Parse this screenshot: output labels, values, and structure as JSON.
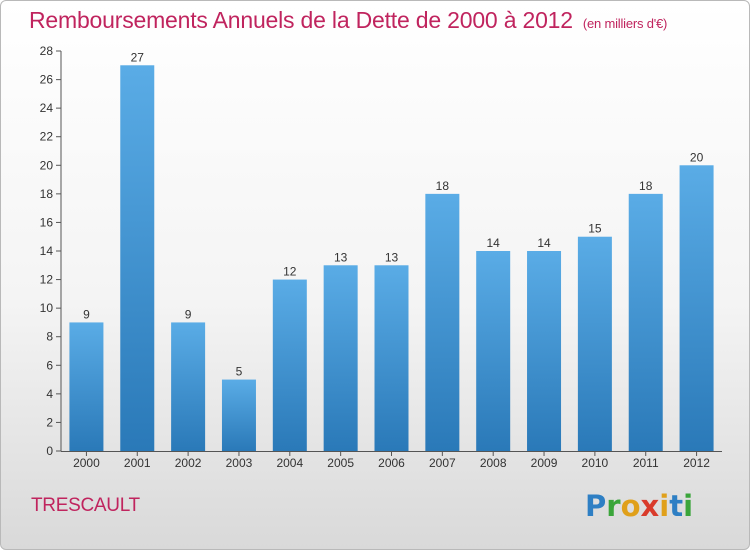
{
  "header": {
    "title": "Remboursements Annuels de la Dette de 2000 à 2012",
    "unit": "(en milliers d'€)"
  },
  "footer": {
    "commune": "TRESCAULT",
    "logo": "Proxiti"
  },
  "colors": {
    "title": "#c0245e",
    "bar_light": "#5aace6",
    "bar_dark": "#2a79b8",
    "logo_letters": [
      "#2e7fc4",
      "#3aa53a",
      "#e0a01a",
      "#d93b2b",
      "#e0a01a",
      "#2e7fc4",
      "#3aa53a"
    ]
  },
  "chart_data": {
    "type": "bar",
    "title": "Remboursements Annuels de la Dette de 2000 à 2012",
    "subtitle": "(en milliers d'€)",
    "categories": [
      "2000",
      "2001",
      "2002",
      "2003",
      "2004",
      "2005",
      "2006",
      "2007",
      "2008",
      "2009",
      "2010",
      "2011",
      "2012"
    ],
    "values": [
      9,
      27,
      9,
      5,
      12,
      13,
      13,
      18,
      14,
      14,
      15,
      18,
      20
    ],
    "ylim": [
      0,
      28
    ],
    "yticks": [
      0,
      2,
      4,
      6,
      8,
      10,
      12,
      14,
      16,
      18,
      20,
      22,
      24,
      26,
      28
    ],
    "grid": false,
    "data_labels": true
  }
}
